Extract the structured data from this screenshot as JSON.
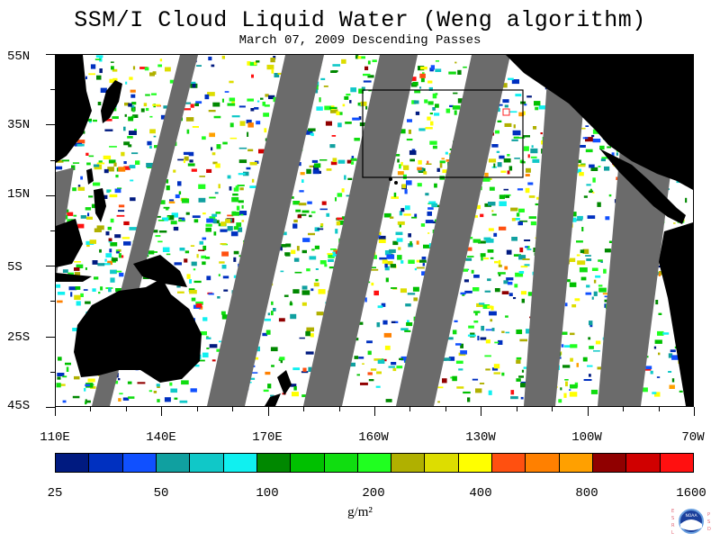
{
  "title": "SSM/I Cloud Liquid Water (Weng algorithm)",
  "subtitle": "March 07, 2009  Descending Passes",
  "lat_labels": [
    "55N",
    "35N",
    "15N",
    "5S",
    "25S",
    "45S"
  ],
  "lon_labels": [
    "110E",
    "140E",
    "170E",
    "160W",
    "130W",
    "100W",
    "70W"
  ],
  "colorbar": {
    "colors": [
      "#001a80",
      "#0030c0",
      "#1050ff",
      "#10a0a0",
      "#10c8c8",
      "#10f0f0",
      "#008800",
      "#00c000",
      "#10dd10",
      "#20ff20",
      "#b0b000",
      "#dddd00",
      "#ffff00",
      "#ff5010",
      "#ff8000",
      "#ffa000",
      "#900000",
      "#d00000",
      "#ff1010"
    ],
    "labels": [
      "25",
      "50",
      "100",
      "200",
      "400",
      "800",
      "1600"
    ],
    "units": "g/m²"
  },
  "logo": {
    "left_text": "ESRL",
    "right_text": "PSD",
    "center_text": "NOAA"
  },
  "colors": {
    "land": "#000000",
    "no_data_gap": "#6b6b6b",
    "background": "#ffffff"
  }
}
